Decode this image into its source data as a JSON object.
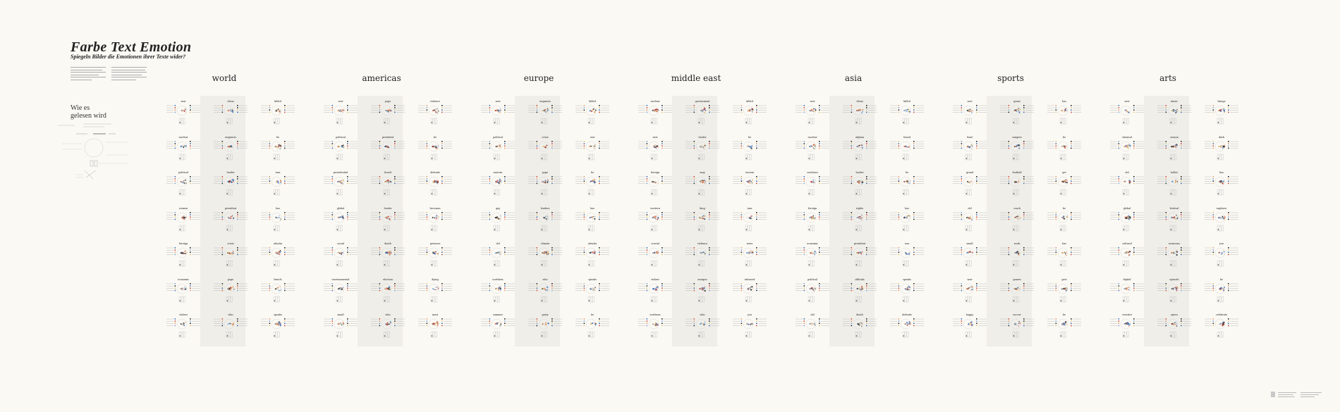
{
  "header": {
    "title": "Farbe Text Emotion",
    "subtitle": "Spiegeln Bilder die Emotionen ihrer Texte wider?",
    "reading_title_1": "Wie es",
    "reading_title_2": "gelesen wird"
  },
  "palette": {
    "background": "#fbf9f4",
    "band": "#efeee9",
    "text": "#222222",
    "accents": [
      "#3b6fb6",
      "#c84a3c",
      "#e39a6a",
      "#7aa5d6",
      "#2a2a2a",
      "#d9c27a"
    ]
  },
  "sections": [
    {
      "label": "world",
      "words": [
        "new",
        "china",
        "killed",
        "nuclear",
        "migrants",
        "be",
        "political",
        "leader",
        "iran",
        "women",
        "president",
        "has",
        "foreign",
        "crisis",
        "attacks",
        "economic",
        "pope",
        "french",
        "violent",
        "who",
        "speaks"
      ]
    },
    {
      "label": "americas",
      "words": [
        "new",
        "pope",
        "violence",
        "political",
        "president",
        "be",
        "presidential",
        "brazil",
        "defends",
        "global",
        "leader",
        "becomes",
        "social",
        "death",
        "prisoner",
        "environmental",
        "election",
        "dying",
        "small",
        "who",
        "most"
      ]
    },
    {
      "label": "europe",
      "words": [
        "new",
        "migrants",
        "killed",
        "political",
        "crisis",
        "war",
        "eastern",
        "pope",
        "be",
        "gay",
        "leaders",
        "has",
        "old",
        "climate",
        "attacks",
        "northern",
        "who",
        "speaks",
        "summer",
        "party",
        "be"
      ]
    },
    {
      "label": "middle east",
      "words": [
        "nuclear",
        "government",
        "killed",
        "new",
        "leader",
        "be",
        "foreign",
        "may",
        "terrain",
        "western",
        "king",
        "iran",
        "crucial",
        "violence",
        "wave",
        "violent",
        "morgue",
        "released",
        "northern",
        "who",
        "you"
      ]
    },
    {
      "label": "asia",
      "words": [
        "new",
        "china",
        "killed",
        "nuclear",
        "afghan",
        "found",
        "southern",
        "leader",
        "be",
        "foreign",
        "rights",
        "has",
        "economic",
        "president",
        "war",
        "political",
        "officials",
        "speaks",
        "old",
        "death",
        "defends"
      ]
    },
    {
      "label": "sports",
      "words": [
        "new",
        "game",
        "has",
        "final",
        "rangers",
        "be",
        "grand",
        "football",
        "get",
        "old",
        "coach",
        "be",
        "small",
        "work",
        "has",
        "new",
        "games",
        "gets",
        "happy",
        "soccer",
        "be"
      ]
    },
    {
      "label": "arts",
      "words": [
        "new",
        "music",
        "brings",
        "classical",
        "season",
        "dark",
        "old",
        "ballet",
        "has",
        "global",
        "festival",
        "explores",
        "cultural",
        "musician",
        "you",
        "digital",
        "episode",
        "be",
        "creative",
        "opera",
        "celebrate"
      ]
    }
  ]
}
